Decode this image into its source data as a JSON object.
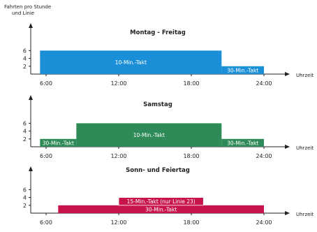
{
  "y_axis_label": [
    "Fahrten pro Stunde",
    "und Linie"
  ],
  "chart_data": [
    {
      "type": "bar",
      "title": "Montag - Freitag",
      "xlabel": "Uhrzeit",
      "ylabel": "Fahrten pro Stunde und Linie",
      "x_ticks": [
        "6:00",
        "12:00",
        "18:00",
        "24:00"
      ],
      "y_ticks": [
        "2",
        "4",
        "6"
      ],
      "ylim": [
        0,
        7
      ],
      "xlim": [
        5,
        25
      ],
      "color": "#1a8fd8",
      "segments": [
        {
          "start": 5.5,
          "end": 20.5,
          "value": 6,
          "label": "10-Min.-Takt"
        },
        {
          "start": 20.5,
          "end": 24.0,
          "value": 2,
          "label": "30-Min.-Takt"
        }
      ]
    },
    {
      "type": "bar",
      "title": "Samstag",
      "xlabel": "Uhrzeit",
      "x_ticks": [
        "6:00",
        "12:00",
        "18:00",
        "24:00"
      ],
      "y_ticks": [
        "2",
        "4",
        "6"
      ],
      "ylim": [
        0,
        7
      ],
      "xlim": [
        5,
        25
      ],
      "color": "#2e8b57",
      "segments": [
        {
          "start": 5.5,
          "end": 8.5,
          "value": 2,
          "label": "30-Min.-Takt"
        },
        {
          "start": 8.5,
          "end": 20.5,
          "value": 6,
          "label": "10-Min.-Takt"
        },
        {
          "start": 20.5,
          "end": 24.0,
          "value": 2,
          "label": "30-Min.-Takt"
        }
      ]
    },
    {
      "type": "bar",
      "title": "Sonn- und Feiertag",
      "xlabel": "Uhrzeit",
      "x_ticks": [
        "6:00",
        "12:00",
        "18:00",
        "24:00"
      ],
      "y_ticks": [
        "2",
        "4",
        "6"
      ],
      "ylim": [
        0,
        7
      ],
      "xlim": [
        5,
        25
      ],
      "color": "#c8144a",
      "segments": [
        {
          "start": 7.0,
          "end": 24.0,
          "value": 2,
          "label": "30-Min.-Takt"
        },
        {
          "start": 12.0,
          "end": 19.0,
          "value": 2,
          "base": 2,
          "label": "15-Min.-Takt (nur Linie 23)"
        }
      ]
    }
  ]
}
